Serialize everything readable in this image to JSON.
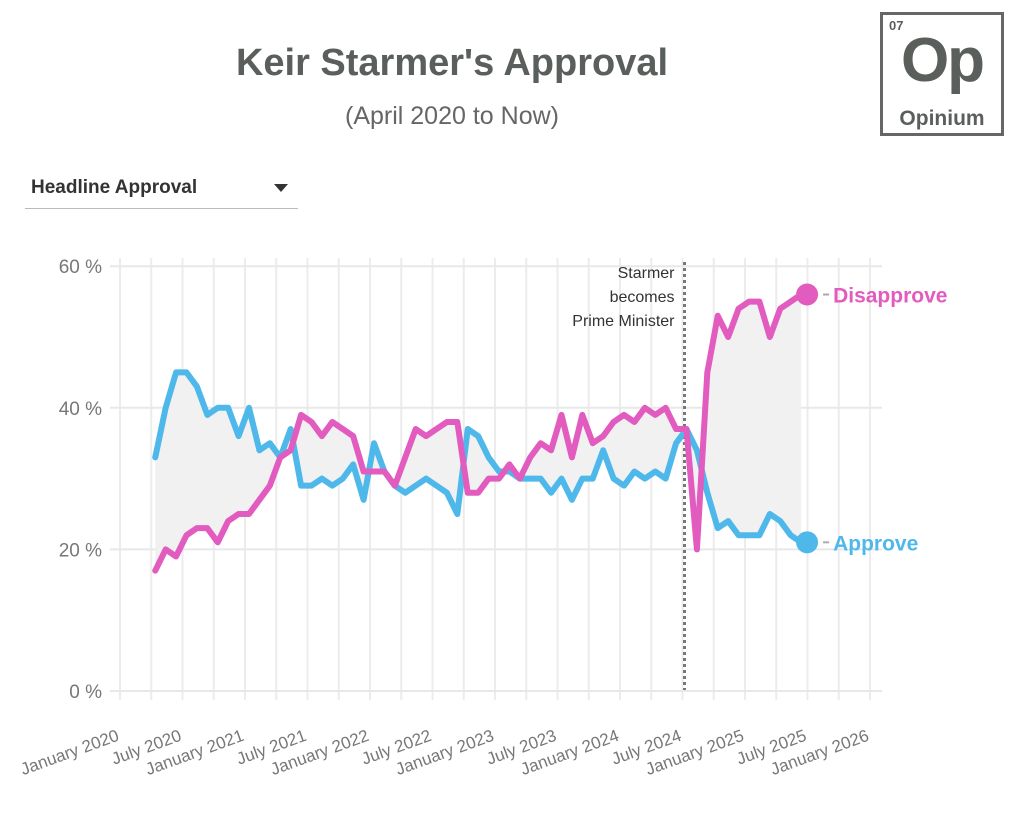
{
  "header": {
    "title": "Keir Starmer's Approval",
    "subtitle": "(April 2020 to Now)"
  },
  "logo": {
    "number": "07",
    "symbol": "Op",
    "name": "Opinium"
  },
  "dropdown": {
    "selected": "Headline Approval"
  },
  "chart_data": {
    "type": "line",
    "title": "Keir Starmer's Approval",
    "subtitle": "(April 2020 to Now)",
    "y_ticks": [
      "0 %",
      "20 %",
      "40 %",
      "60 %"
    ],
    "ylim": [
      0,
      60
    ],
    "x_ticks": [
      "January 2020",
      "July 2020",
      "January 2021",
      "July 2021",
      "January 2022",
      "July 2022",
      "January 2023",
      "July 2023",
      "January 2024",
      "July 2024",
      "January 2025",
      "July 2025",
      "January 2026"
    ],
    "xlim": [
      "2020-01",
      "2026-01"
    ],
    "grid": true,
    "annotation": {
      "date": "2024-07",
      "lines": [
        "Starmer",
        "becomes",
        "Prime Minister"
      ]
    },
    "x": [
      "2020-04",
      "2020-05",
      "2020-06",
      "2020-07",
      "2020-08",
      "2020-09",
      "2020-10",
      "2020-11",
      "2020-12",
      "2021-01",
      "2021-02",
      "2021-03",
      "2021-04",
      "2021-05",
      "2021-06",
      "2021-07",
      "2021-08",
      "2021-09",
      "2021-10",
      "2021-11",
      "2021-12",
      "2022-01",
      "2022-02",
      "2022-03",
      "2022-04",
      "2022-05",
      "2022-06",
      "2022-07",
      "2022-08",
      "2022-09",
      "2022-10",
      "2022-11",
      "2022-12",
      "2023-01",
      "2023-02",
      "2023-03",
      "2023-04",
      "2023-05",
      "2023-06",
      "2023-07",
      "2023-08",
      "2023-09",
      "2023-10",
      "2023-11",
      "2023-12",
      "2024-01",
      "2024-02",
      "2024-03",
      "2024-04",
      "2024-05",
      "2024-06",
      "2024-07",
      "2024-08",
      "2024-09",
      "2024-10",
      "2024-11",
      "2024-12",
      "2025-01",
      "2025-02",
      "2025-03",
      "2025-04",
      "2025-05",
      "2025-06"
    ],
    "series": [
      {
        "name": "Disapprove",
        "color": "#e25bbf",
        "values": [
          17,
          20,
          19,
          22,
          23,
          23,
          21,
          24,
          25,
          25,
          27,
          29,
          33,
          34,
          39,
          38,
          36,
          38,
          37,
          36,
          31,
          31,
          31,
          29,
          33,
          37,
          36,
          37,
          38,
          38,
          28,
          28,
          30,
          30,
          32,
          30,
          33,
          35,
          34,
          39,
          33,
          39,
          35,
          36,
          38,
          39,
          38,
          40,
          39,
          40,
          37,
          37,
          20,
          45,
          53,
          50,
          54,
          55,
          55,
          50,
          54,
          55,
          56
        ]
      },
      {
        "name": "Approve",
        "color": "#4fb8ea",
        "values": [
          33,
          40,
          45,
          45,
          43,
          39,
          40,
          40,
          36,
          40,
          34,
          35,
          33,
          37,
          29,
          29,
          30,
          29,
          30,
          32,
          27,
          35,
          31,
          29,
          28,
          29,
          30,
          29,
          28,
          25,
          37,
          36,
          33,
          31,
          31,
          30,
          30,
          30,
          28,
          30,
          27,
          30,
          30,
          34,
          30,
          29,
          31,
          30,
          31,
          30,
          35,
          37,
          34,
          28,
          23,
          24,
          22,
          22,
          22,
          25,
          24,
          22,
          21
        ]
      }
    ]
  }
}
